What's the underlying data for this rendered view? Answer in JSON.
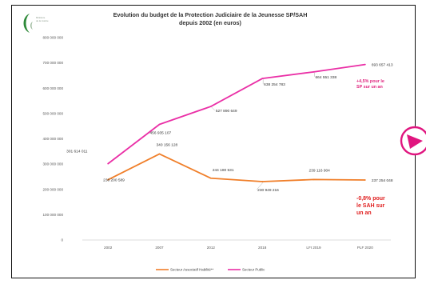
{
  "logo": {
    "name": "ministry-logo",
    "text_line1": "Ministère",
    "text_line2": "de la Justice"
  },
  "chart_data": {
    "type": "line",
    "title_line1": "Evolution du budget de la Protection Judiciaire de la Jeunesse SP/SAH",
    "title_line2": "depuis 2002 (en euros)",
    "categories": [
      "2002",
      "2007",
      "2012",
      "2018",
      "LFI 2019",
      "PLF 2020"
    ],
    "ylim": [
      0,
      800000000
    ],
    "yticks": [
      "0",
      "100 000 000",
      "200 000 000",
      "300 000 000",
      "400 000 000",
      "500 000 000",
      "600 000 000",
      "700 000 000",
      "800 000 000"
    ],
    "grid": false,
    "legend_position": "bottom",
    "series": [
      {
        "name": "Secteur Associatif Habilité**",
        "color": "#f07f2a",
        "values": [
          238200589,
          340156128,
          244180531,
          230949216,
          239116904,
          237254048
        ],
        "labels": [
          "238 200 589",
          "340 156 128",
          "244 180 531",
          "230 949 216",
          "239 116 904",
          "237 254 048"
        ]
      },
      {
        "name": "Secteur Public",
        "color": "#ea2fa6",
        "values": [
          301614011,
          456935107,
          527890649,
          638254783,
          664551338,
          693657413
        ],
        "labels": [
          "301 614 011",
          "456 935 107",
          "527 890 649",
          "638 254 783",
          "664 551 338",
          "693 657 413"
        ]
      }
    ],
    "annotations": {
      "public_note_line1": "+4,5% pour le",
      "public_note_line2": "SP sur un an",
      "sah_note_line1": "-0,8% pour",
      "sah_note_line2": "le SAH sur",
      "sah_note_line3": "un an"
    }
  },
  "nav_button": {
    "name": "next-slide",
    "color": "#e0157f"
  }
}
